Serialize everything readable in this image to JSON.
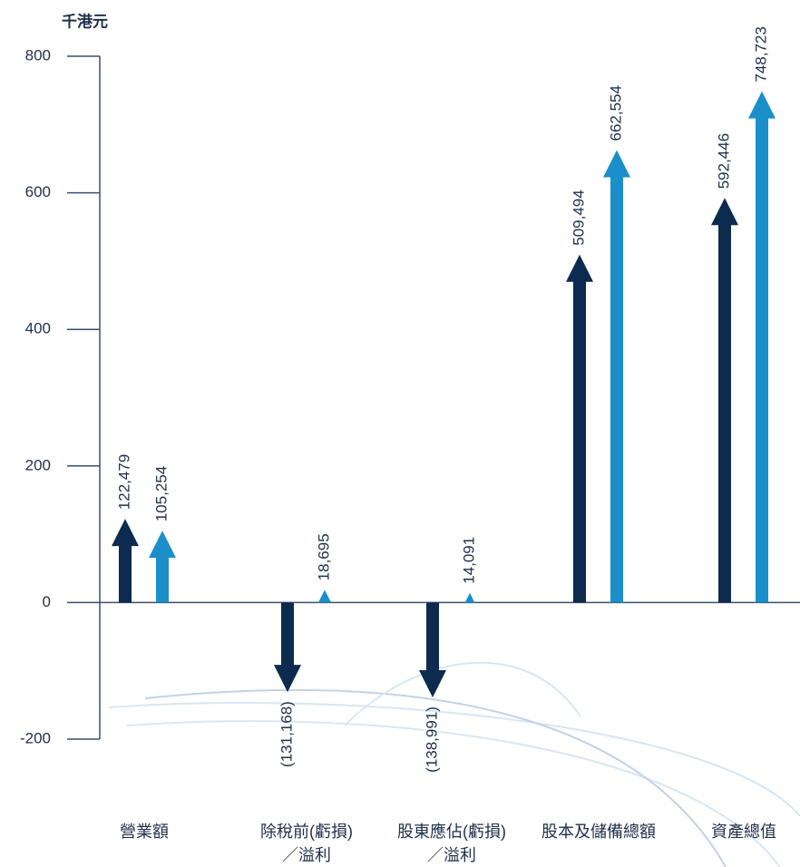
{
  "chart_data": {
    "type": "arrow-bar",
    "title": "千港元",
    "categories": [
      "營業額",
      "除稅前(虧損)\n／溢利",
      "股東應佔(虧損)\n／溢利",
      "股本及儲備總額",
      "資產總值"
    ],
    "series": [
      {
        "color": "#0d2a4f",
        "values": [
          122.479,
          -131.168,
          -138.991,
          509.494,
          592.446
        ],
        "value_labels": [
          "122,479",
          "(131,168)",
          "(138,991)",
          "509,494",
          "592,446"
        ]
      },
      {
        "color": "#1a8fca",
        "values": [
          105.254,
          18.695,
          14.091,
          662.554,
          748.723
        ],
        "value_labels": [
          "105,254",
          "18,695",
          "14,091",
          "662,554",
          "748,723"
        ]
      }
    ],
    "ylim": [
      -200,
      800
    ],
    "yticks": [
      -200,
      0,
      200,
      400,
      600,
      800
    ]
  }
}
